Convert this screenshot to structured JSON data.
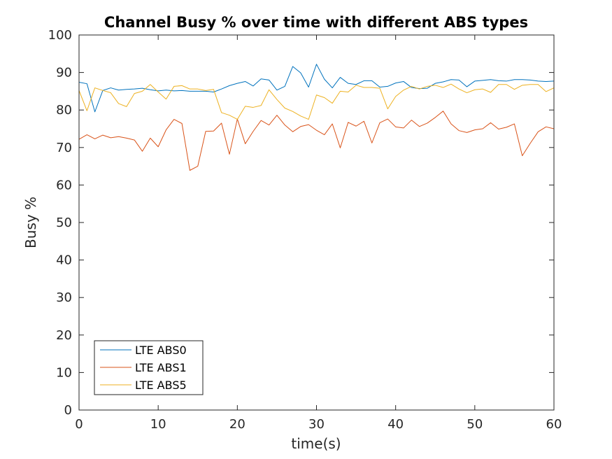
{
  "chart_data": {
    "type": "line",
    "title": "Channel Busy % over time with different ABS types",
    "xlabel": "time(s)",
    "ylabel": "Busy %",
    "xlim": [
      0,
      60
    ],
    "ylim": [
      0,
      100
    ],
    "xticks": [
      0,
      10,
      20,
      30,
      40,
      50,
      60
    ],
    "yticks": [
      0,
      10,
      20,
      30,
      40,
      50,
      60,
      70,
      80,
      90,
      100
    ],
    "grid": false,
    "legend_position": "bottom-left",
    "x": [
      0,
      1,
      2,
      3,
      4,
      5,
      6,
      7,
      8,
      9,
      10,
      11,
      12,
      13,
      14,
      15,
      16,
      17,
      18,
      19,
      20,
      21,
      22,
      23,
      24,
      25,
      26,
      27,
      28,
      29,
      30,
      31,
      32,
      33,
      34,
      35,
      36,
      37,
      38,
      39,
      40,
      41,
      42,
      43,
      44,
      45,
      46,
      47,
      48,
      49,
      50,
      51,
      52,
      53,
      54,
      55,
      56,
      57,
      58,
      59,
      60
    ],
    "series": [
      {
        "name": "LTE ABS0",
        "color": "#0072BD",
        "values": [
          87.4,
          87.0,
          79.5,
          85.2,
          85.9,
          85.3,
          85.5,
          85.6,
          85.8,
          85.4,
          85.1,
          85.3,
          85.1,
          85.2,
          85.0,
          85.0,
          85.0,
          84.8,
          85.6,
          86.5,
          87.1,
          87.6,
          86.4,
          88.3,
          88.0,
          85.3,
          86.3,
          91.6,
          89.9,
          86.1,
          92.2,
          88.2,
          85.9,
          88.7,
          87.1,
          86.8,
          87.8,
          87.8,
          86.1,
          86.3,
          87.2,
          87.6,
          86.0,
          85.7,
          85.8,
          87.1,
          87.5,
          88.1,
          88.0,
          86.2,
          87.7,
          87.9,
          88.1,
          87.8,
          87.7,
          88.1,
          88.1,
          88.0,
          87.7,
          87.6,
          87.7
        ]
      },
      {
        "name": "LTE ABS1",
        "color": "#D95319",
        "values": [
          72.2,
          73.4,
          72.3,
          73.3,
          72.6,
          72.9,
          72.5,
          72.0,
          69.0,
          72.5,
          70.2,
          74.7,
          77.5,
          76.4,
          63.9,
          65.0,
          74.3,
          74.4,
          76.5,
          68.2,
          77.6,
          71.0,
          74.3,
          77.2,
          76.0,
          78.6,
          76.0,
          74.2,
          75.6,
          76.1,
          74.6,
          73.4,
          76.3,
          69.9,
          76.7,
          75.7,
          77.0,
          71.2,
          76.6,
          77.6,
          75.5,
          75.2,
          77.3,
          75.6,
          76.5,
          78.0,
          79.7,
          76.3,
          74.5,
          74.0,
          74.7,
          75.0,
          76.6,
          74.9,
          75.4,
          76.3,
          67.8,
          71.1,
          74.2,
          75.5,
          75.0
        ]
      },
      {
        "name": "LTE ABS5",
        "color": "#EDB120",
        "values": [
          85.2,
          79.8,
          85.9,
          85.2,
          84.6,
          81.7,
          80.9,
          84.4,
          85.0,
          86.8,
          84.8,
          82.9,
          86.3,
          86.5,
          85.6,
          85.6,
          85.2,
          85.5,
          79.3,
          78.6,
          77.5,
          81.0,
          80.7,
          81.2,
          85.4,
          82.8,
          80.5,
          79.6,
          78.4,
          77.5,
          84.0,
          83.3,
          81.8,
          85.0,
          84.8,
          86.6,
          86.0,
          86.0,
          85.8,
          80.3,
          83.6,
          85.3,
          86.3,
          85.6,
          86.3,
          86.6,
          86.0,
          86.9,
          85.6,
          84.6,
          85.4,
          85.6,
          84.7,
          86.8,
          86.8,
          85.5,
          86.6,
          86.8,
          86.8,
          84.9,
          85.9
        ]
      }
    ]
  }
}
